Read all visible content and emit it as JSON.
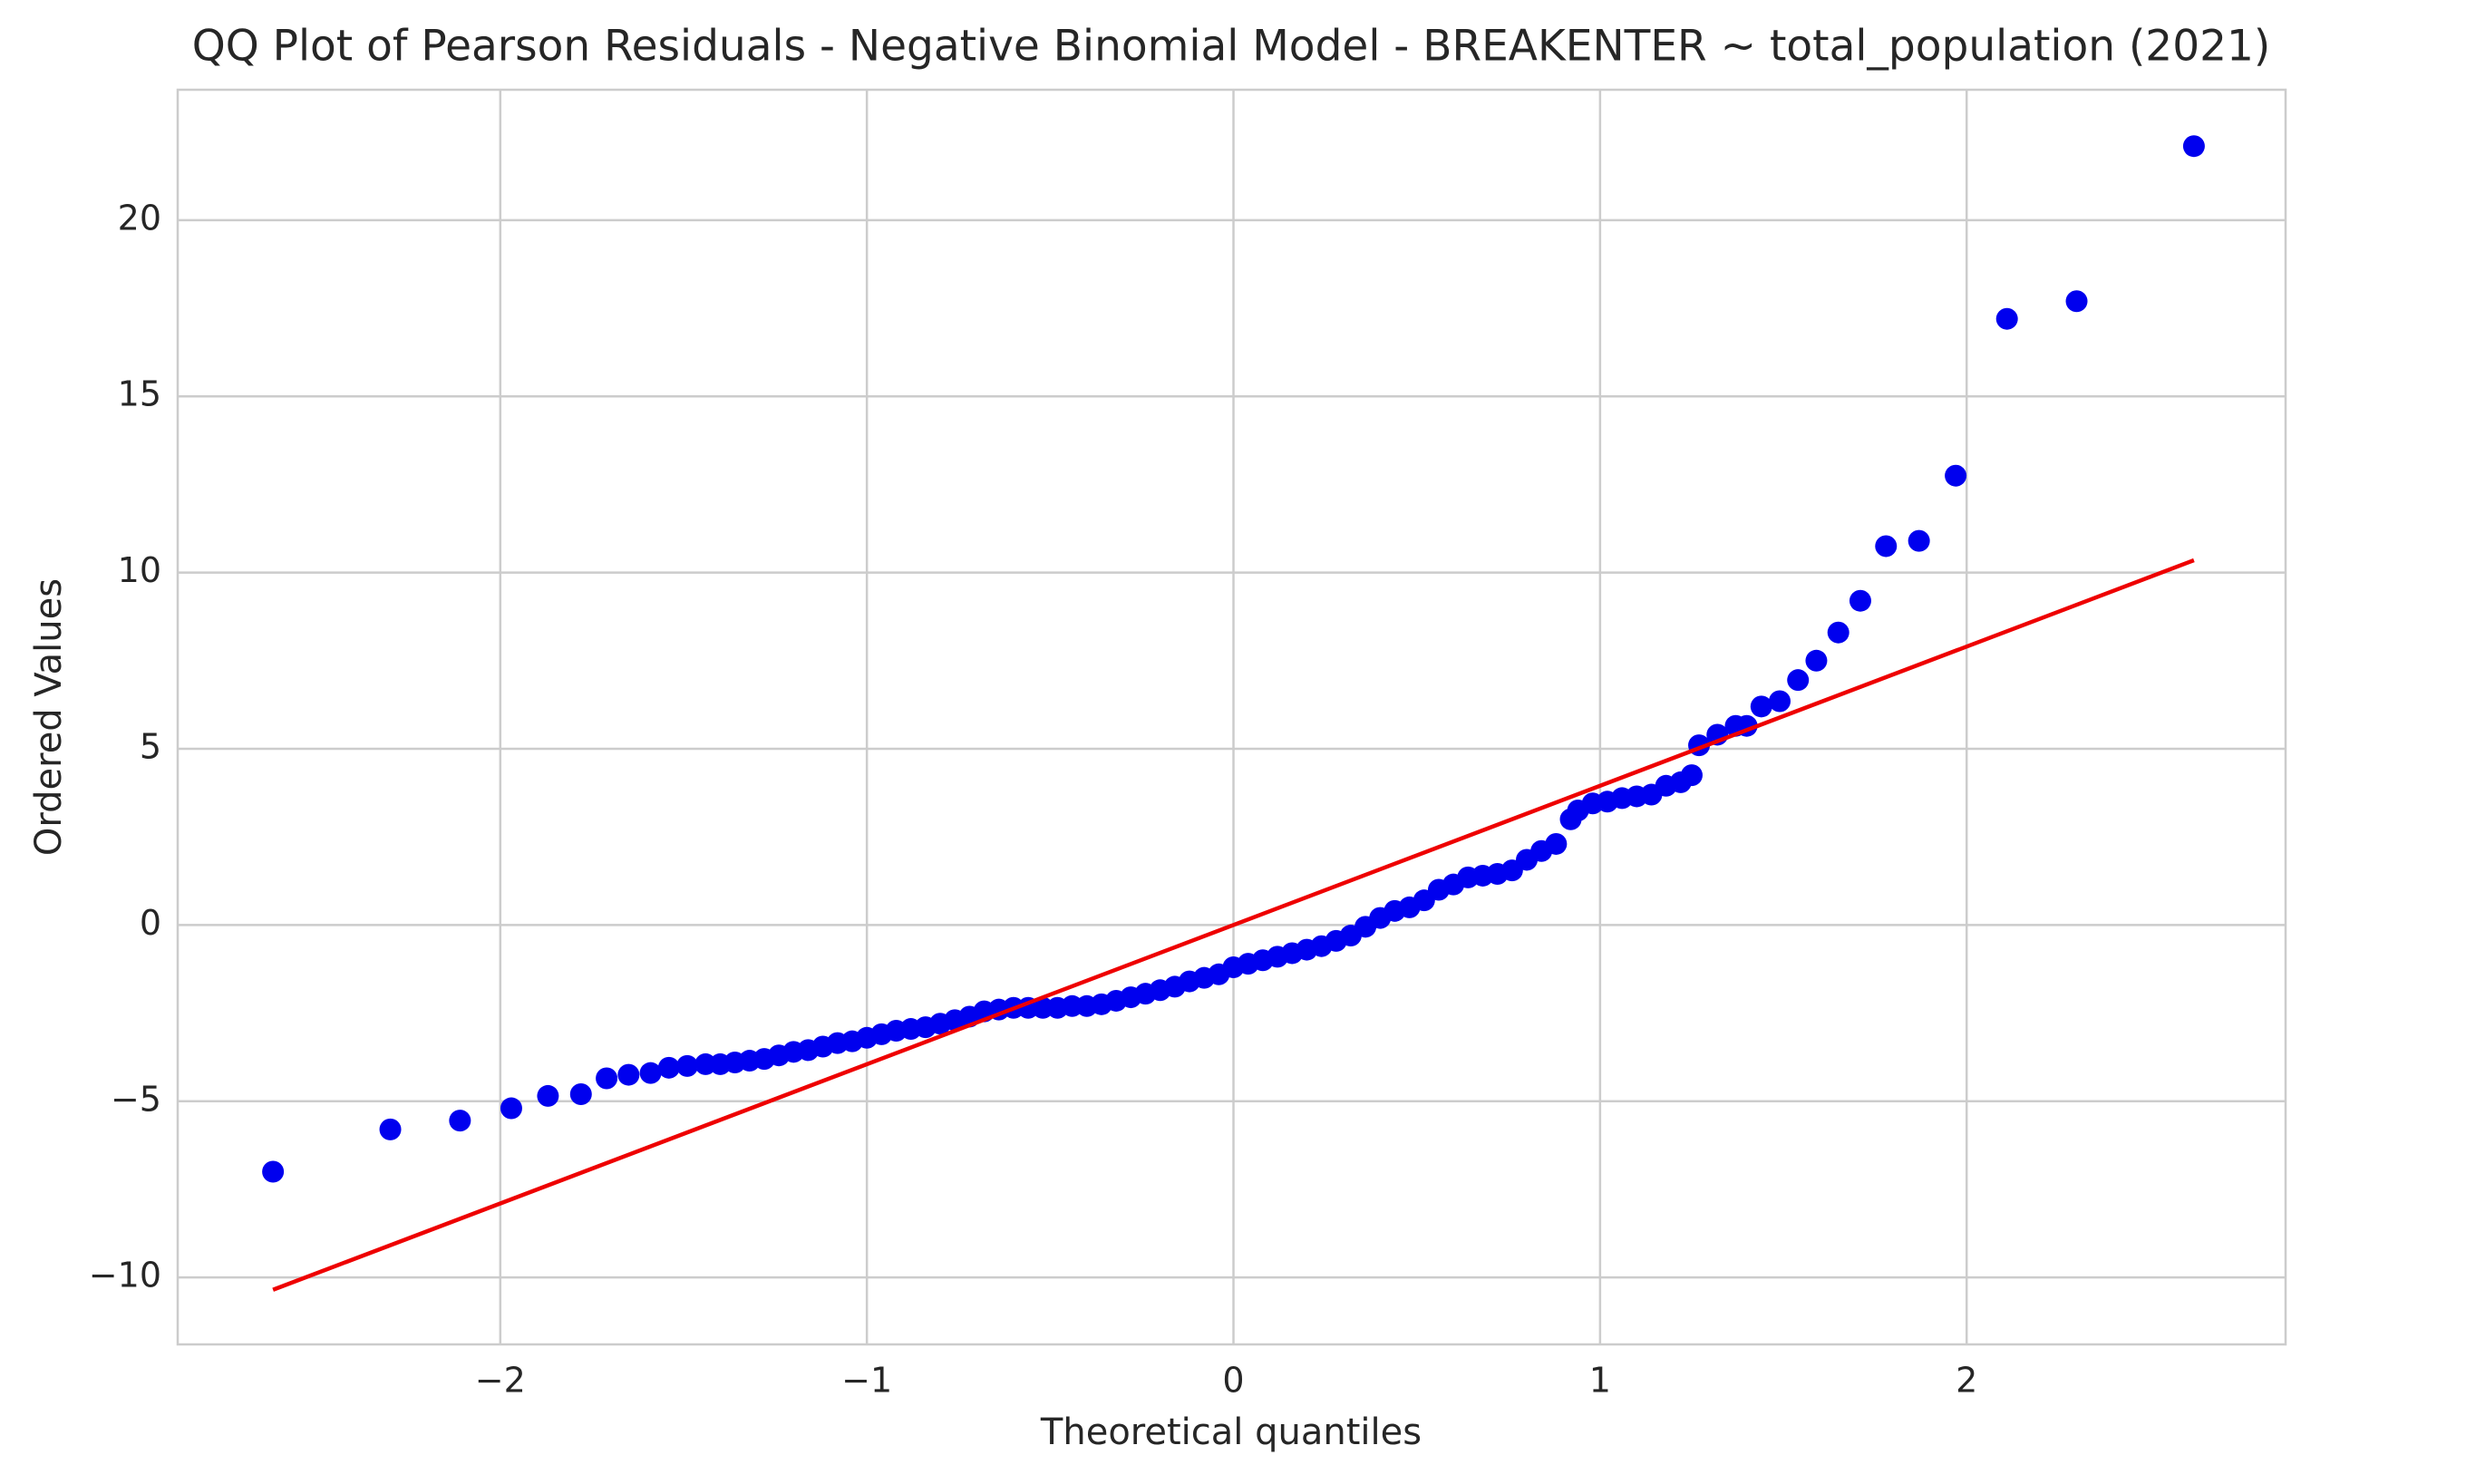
{
  "chart_data": {
    "type": "scatter",
    "title": "QQ Plot of Pearson Residuals - Negative Binomial Model - BREAKENTER ~ total_population (2021)",
    "xlabel": "Theoretical quantiles",
    "ylabel": "Ordered Values",
    "xlim": [
      -2.88,
      2.87
    ],
    "ylim": [
      -11.9,
      23.7
    ],
    "xticks": [
      {
        "value": -2,
        "label": "−2"
      },
      {
        "value": -1,
        "label": "−1"
      },
      0,
      1,
      2
    ],
    "yticks": [
      {
        "value": -10,
        "label": "−10"
      },
      {
        "value": -5,
        "label": "−5"
      },
      0,
      5,
      10,
      15,
      20
    ],
    "grid": true,
    "series": [
      {
        "color": "#0000ee",
        "x": [
          -2.62,
          -2.3,
          -2.11,
          -1.97,
          -1.87,
          -1.78,
          -1.71,
          -1.65,
          -1.59,
          -1.54,
          -1.49,
          -1.44,
          -1.4,
          -1.36,
          -1.32,
          -1.28,
          -1.24,
          -1.2,
          -1.16,
          -1.12,
          -1.08,
          -1.04,
          -1.0,
          -0.96,
          -0.92,
          -0.88,
          -0.84,
          -0.8,
          -0.76,
          -0.72,
          -0.68,
          -0.64,
          -0.6,
          -0.56,
          -0.52,
          -0.48,
          -0.44,
          -0.4,
          -0.36,
          -0.32,
          -0.28,
          -0.24,
          -0.2,
          -0.16,
          -0.12,
          -0.08,
          -0.04,
          0.0,
          0.04,
          0.08,
          0.12,
          0.16,
          0.2,
          0.24,
          0.28,
          0.32,
          0.36,
          0.4,
          0.44,
          0.48,
          0.52,
          0.56,
          0.6,
          0.64,
          0.68,
          0.72,
          0.76,
          0.8,
          0.84,
          0.88,
          0.92,
          0.94,
          0.98,
          1.02,
          1.06,
          1.1,
          1.14,
          1.18,
          1.22,
          1.25,
          1.27,
          1.32,
          1.37,
          1.4,
          1.44,
          1.49,
          1.54,
          1.59,
          1.65,
          1.71,
          1.78,
          1.87,
          1.97,
          2.11,
          2.3,
          2.62
        ],
        "values": [
          -7.0,
          -5.8,
          -5.55,
          -5.2,
          -4.85,
          -4.8,
          -4.35,
          -4.25,
          -4.2,
          -4.05,
          -4.0,
          -3.95,
          -3.95,
          -3.9,
          -3.85,
          -3.8,
          -3.7,
          -3.6,
          -3.55,
          -3.45,
          -3.35,
          -3.3,
          -3.2,
          -3.1,
          -3.0,
          -2.95,
          -2.9,
          -2.8,
          -2.7,
          -2.6,
          -2.45,
          -2.4,
          -2.35,
          -2.35,
          -2.35,
          -2.35,
          -2.3,
          -2.3,
          -2.25,
          -2.15,
          -2.05,
          -1.95,
          -1.85,
          -1.75,
          -1.6,
          -1.5,
          -1.4,
          -1.2,
          -1.1,
          -1.0,
          -0.9,
          -0.8,
          -0.7,
          -0.6,
          -0.45,
          -0.3,
          -0.05,
          0.2,
          0.4,
          0.5,
          0.7,
          1.0,
          1.15,
          1.35,
          1.4,
          1.45,
          1.55,
          1.85,
          2.1,
          2.3,
          3.0,
          3.25,
          3.45,
          3.5,
          3.6,
          3.65,
          3.7,
          3.95,
          4.05,
          4.25,
          5.1,
          5.4,
          5.65,
          5.65,
          6.2,
          6.35,
          6.95,
          7.5,
          8.3,
          9.2,
          10.75,
          10.9,
          12.75,
          17.2,
          17.7,
          22.1
        ]
      }
    ],
    "line": {
      "color": "#ee0000",
      "x": [
        -2.62,
        2.62
      ],
      "values": [
        -10.35,
        10.35
      ]
    }
  }
}
